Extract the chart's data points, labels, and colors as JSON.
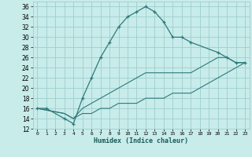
{
  "xlabel": "Humidex (Indice chaleur)",
  "background_color": "#c8ecea",
  "grid_color": "#9ecece",
  "line_color": "#2d7a7a",
  "xlim": [
    -0.5,
    23.5
  ],
  "ylim": [
    12,
    37
  ],
  "xticks": [
    0,
    1,
    2,
    3,
    4,
    5,
    6,
    7,
    8,
    9,
    10,
    11,
    12,
    13,
    14,
    15,
    16,
    17,
    18,
    19,
    20,
    21,
    22,
    23
  ],
  "yticks": [
    12,
    14,
    16,
    18,
    20,
    22,
    24,
    26,
    28,
    30,
    32,
    34,
    36
  ],
  "curves": [
    {
      "x": [
        0,
        1,
        3,
        4,
        5,
        6,
        7,
        8,
        9,
        10,
        11,
        12,
        13,
        14,
        15,
        16,
        17,
        20,
        21,
        22,
        23
      ],
      "y": [
        16,
        16,
        14,
        13,
        18,
        22,
        26,
        29,
        32,
        34,
        35,
        36,
        35,
        33,
        30,
        30,
        29,
        27,
        26,
        25,
        25
      ],
      "with_markers": true
    },
    {
      "x": [
        0,
        3,
        4,
        5,
        6,
        7,
        8,
        9,
        10,
        11,
        12,
        13,
        14,
        15,
        16,
        17,
        18,
        19,
        20,
        21,
        22,
        23
      ],
      "y": [
        16,
        15,
        14,
        16,
        17,
        18,
        19,
        20,
        21,
        22,
        23,
        23,
        23,
        23,
        23,
        23,
        24,
        25,
        26,
        26,
        25,
        25
      ],
      "with_markers": false
    },
    {
      "x": [
        0,
        3,
        4,
        5,
        6,
        7,
        8,
        9,
        10,
        11,
        12,
        13,
        14,
        15,
        16,
        17,
        18,
        19,
        20,
        21,
        22,
        23
      ],
      "y": [
        16,
        15,
        14,
        15,
        15,
        16,
        16,
        17,
        17,
        17,
        18,
        18,
        18,
        19,
        19,
        19,
        20,
        21,
        22,
        23,
        24,
        25
      ],
      "with_markers": false
    }
  ]
}
